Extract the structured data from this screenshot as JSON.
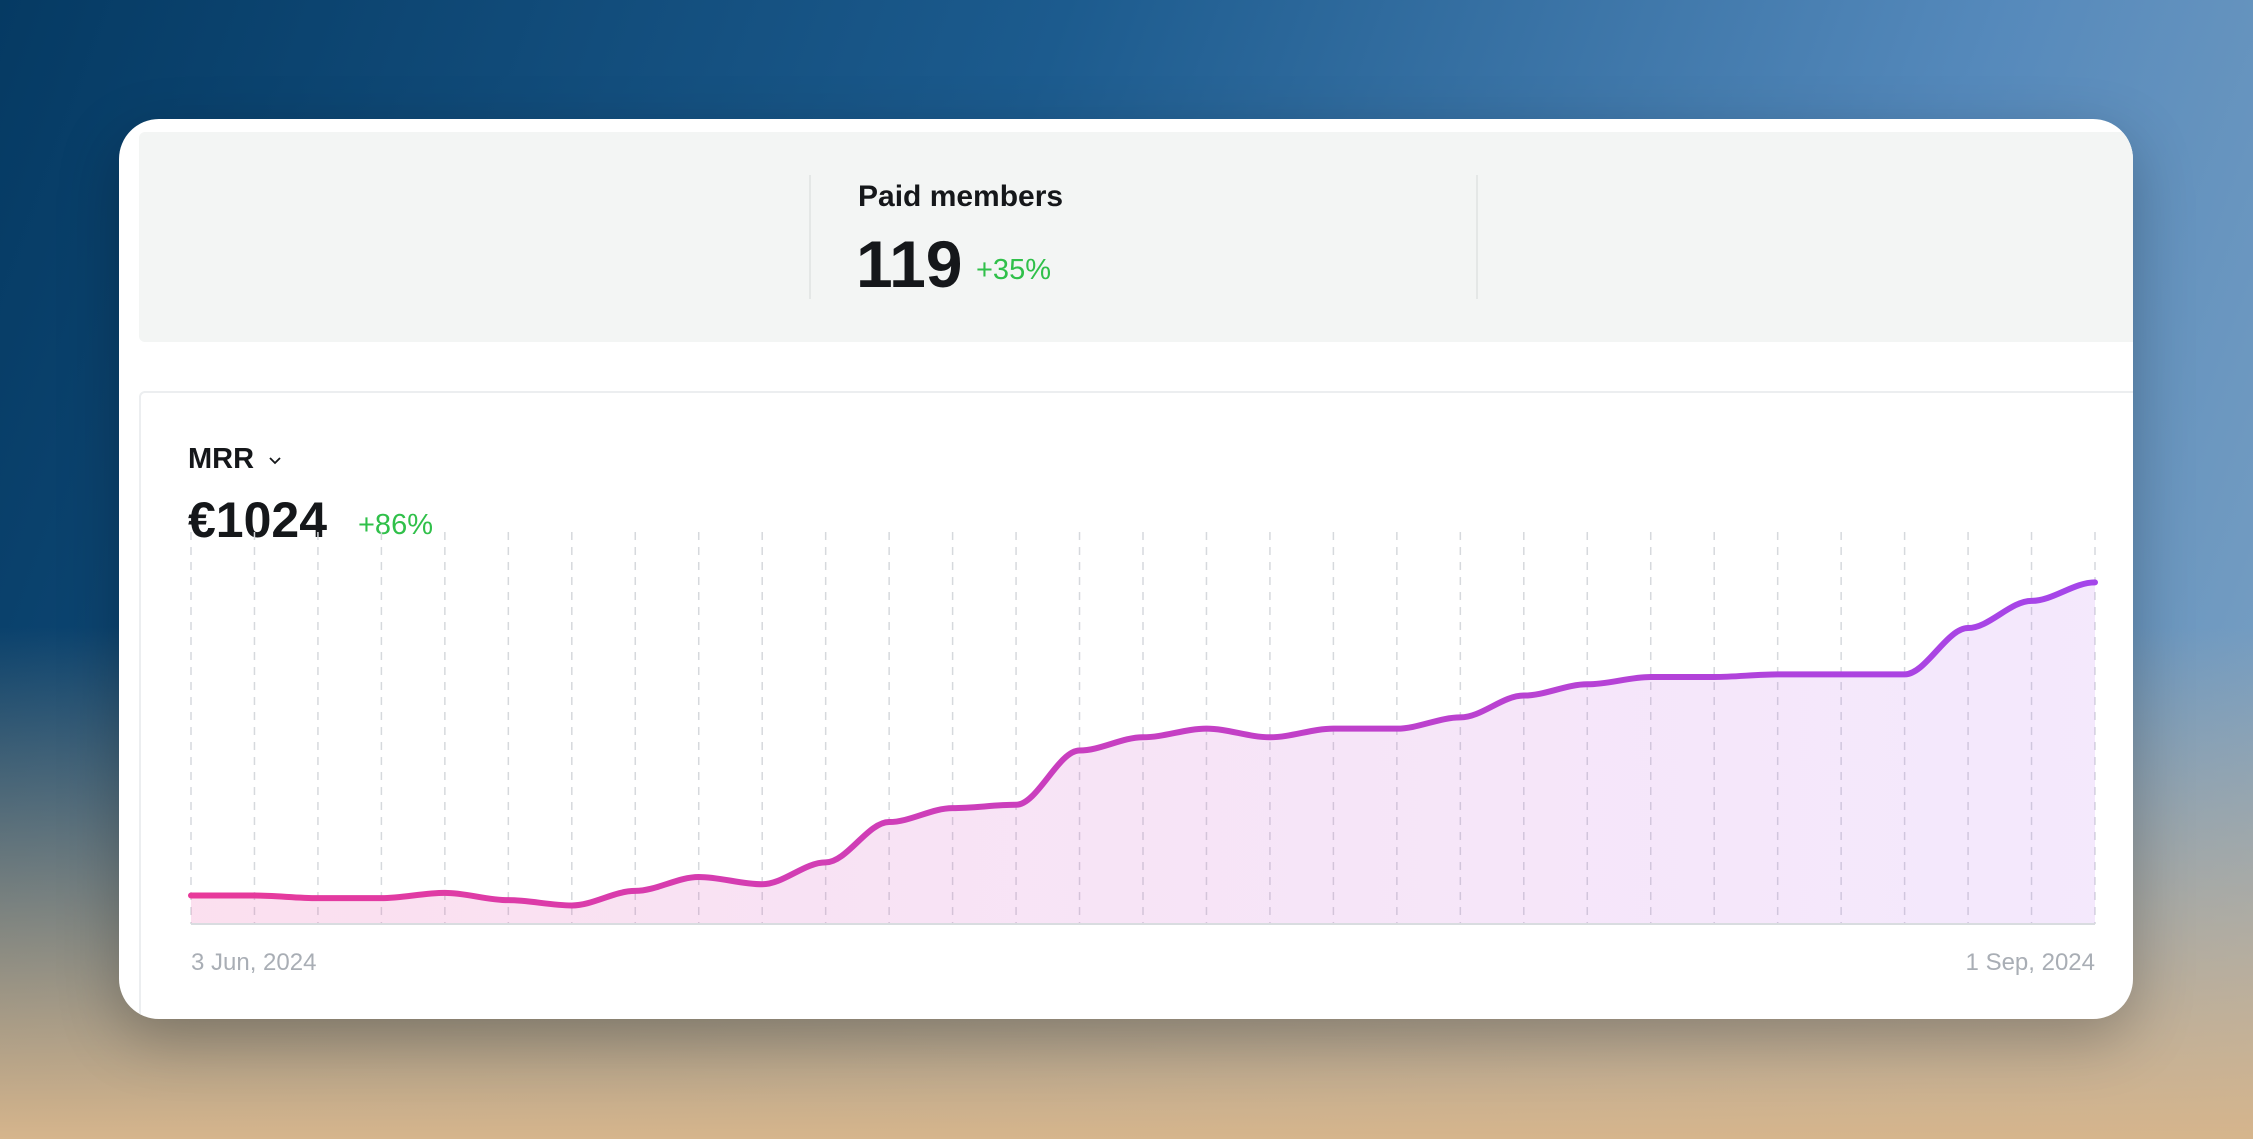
{
  "stats": {
    "label": "Paid members",
    "value": 119,
    "change": "+35%"
  },
  "chart_data": {
    "type": "line",
    "title": "MRR",
    "headline": "€1024",
    "change": "+86%",
    "categories": [
      "3 Jun, 2024",
      null,
      null,
      null,
      null,
      null,
      null,
      null,
      null,
      null,
      null,
      null,
      null,
      null,
      null,
      null,
      null,
      null,
      null,
      null,
      null,
      null,
      null,
      null,
      null,
      null,
      null,
      null,
      null,
      null,
      "1 Sep, 2024"
    ],
    "series": [
      {
        "colors": [
          "#e8399a",
          "#a445ea"
        ],
        "values": [
          551,
          551,
          547,
          547,
          555,
          544,
          536,
          558,
          579,
          568,
          601,
          662,
          683,
          688,
          770,
          790,
          803,
          790,
          803,
          803,
          820,
          853,
          870,
          881,
          881,
          885,
          885,
          885,
          955,
          996,
          1024
        ]
      }
    ],
    "ylim": [
      508,
      1100
    ],
    "grid": true
  }
}
